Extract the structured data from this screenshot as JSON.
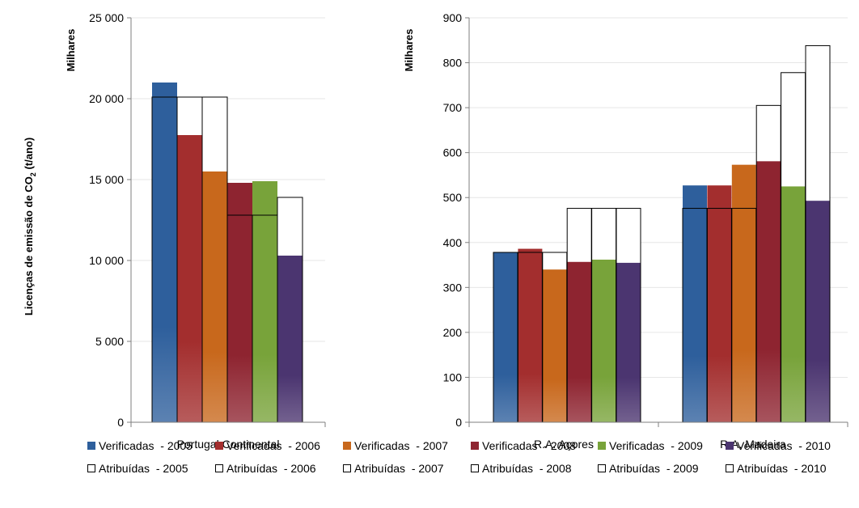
{
  "chart_data": {
    "type": "bar",
    "shared_ylabel": "Licenças de emissão de CO₂ (t/ano)",
    "ylabel_main": "Licenças de emissão de CO",
    "ylabel_sub": "2",
    "ylabel_tail": " (t/ano)",
    "legend_position": "bottom",
    "colors": [
      "#2e5f9c",
      "#a32e2e",
      "#c8681c",
      "#8e2430",
      "#78a33a",
      "#4b3570"
    ],
    "legend": [
      {
        "label": "Verificadas  - 2005",
        "kind": "verified",
        "color": "#2e5f9c"
      },
      {
        "label": "Verificadas  - 2006",
        "kind": "verified",
        "color": "#a32e2e"
      },
      {
        "label": "Verificadas  - 2007",
        "kind": "verified",
        "color": "#c8681c"
      },
      {
        "label": "Verificadas  - 2008",
        "kind": "verified",
        "color": "#8e2430"
      },
      {
        "label": "Verificadas  - 2009",
        "kind": "verified",
        "color": "#78a33a"
      },
      {
        "label": "Verificadas  - 2010",
        "kind": "verified",
        "color": "#4b3570"
      },
      {
        "label": "Atribuídas  - 2005",
        "kind": "allocated"
      },
      {
        "label": "Atribuídas  - 2006",
        "kind": "allocated"
      },
      {
        "label": "Atribuídas  - 2007",
        "kind": "allocated"
      },
      {
        "label": "Atribuídas  - 2008",
        "kind": "allocated"
      },
      {
        "label": "Atribuídas  - 2009",
        "kind": "allocated"
      },
      {
        "label": "Atribuídas  - 2010",
        "kind": "allocated"
      }
    ],
    "panels": [
      {
        "ylabel": "Milhares",
        "ylim": [
          0,
          25000
        ],
        "yticks": [
          0,
          5000,
          10000,
          15000,
          20000,
          25000
        ],
        "ytick_labels": [
          "0",
          "5 000",
          "10 000",
          "15 000",
          "20 000",
          "25 000"
        ],
        "categories": [
          "Portugal Continental"
        ],
        "verified": [
          [
            21000,
            17750,
            15500,
            14800,
            14900,
            10300
          ]
        ],
        "allocated": [
          [
            20100,
            20100,
            20100,
            12800,
            12800,
            13900
          ]
        ]
      },
      {
        "ylabel": "Milhares",
        "ylim": [
          0,
          900
        ],
        "yticks": [
          0,
          100,
          200,
          300,
          400,
          500,
          600,
          700,
          800,
          900
        ],
        "ytick_labels": [
          "0",
          "100",
          "200",
          "300",
          "400",
          "500",
          "600",
          "700",
          "800",
          "900"
        ],
        "categories": [
          "R.A. Açores",
          "R.A. Madeira"
        ],
        "verified": [
          [
            378,
            386,
            340,
            357,
            362,
            355
          ],
          [
            527,
            527,
            573,
            581,
            525,
            493
          ]
        ],
        "allocated": [
          [
            378,
            378,
            378,
            476,
            476,
            476
          ],
          [
            476,
            476,
            476,
            705,
            778,
            838
          ]
        ]
      }
    ]
  }
}
